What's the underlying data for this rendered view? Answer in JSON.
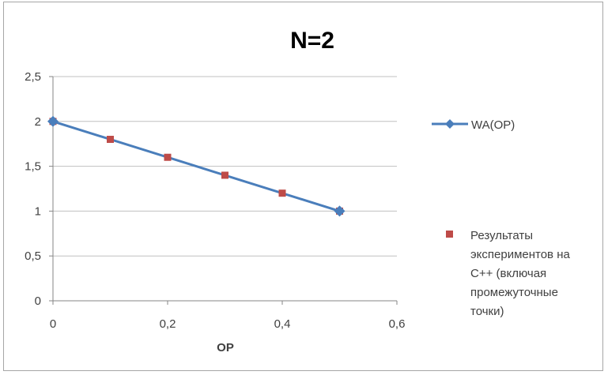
{
  "chart_data": {
    "type": "line",
    "title": "N=2",
    "xlabel": "OP",
    "ylabel": "",
    "xlim": [
      0,
      0.6
    ],
    "ylim": [
      0,
      2.5
    ],
    "x_ticks": [
      0,
      0.2,
      0.4,
      0.6
    ],
    "y_ticks": [
      0,
      0.5,
      1,
      1.5,
      2,
      2.5
    ],
    "x_tick_labels": [
      "0",
      "0,2",
      "0,4",
      "0,6"
    ],
    "y_tick_labels": [
      "0",
      "0,5",
      "1",
      "1,5",
      "2",
      "2,5"
    ],
    "grid": "horizontal",
    "legend_position": "right",
    "series": [
      {
        "name": "WA(OP)",
        "kind": "line-with-diamond-markers",
        "color": "#4a7ebb",
        "x": [
          0,
          0.5
        ],
        "y": [
          2,
          1
        ]
      },
      {
        "name": "Результаты экспериментов на C++ (включая промежуточные точки)",
        "name_lines": [
          "Результаты",
          "экспериментов на",
          "C++ (включая",
          "промежуточные",
          "точки)"
        ],
        "kind": "scatter-square-markers",
        "color": "#be4b48",
        "x": [
          0,
          0.1,
          0.2,
          0.3,
          0.4,
          0.5
        ],
        "y": [
          2,
          1.8,
          1.6,
          1.4,
          1.2,
          1
        ]
      }
    ]
  }
}
